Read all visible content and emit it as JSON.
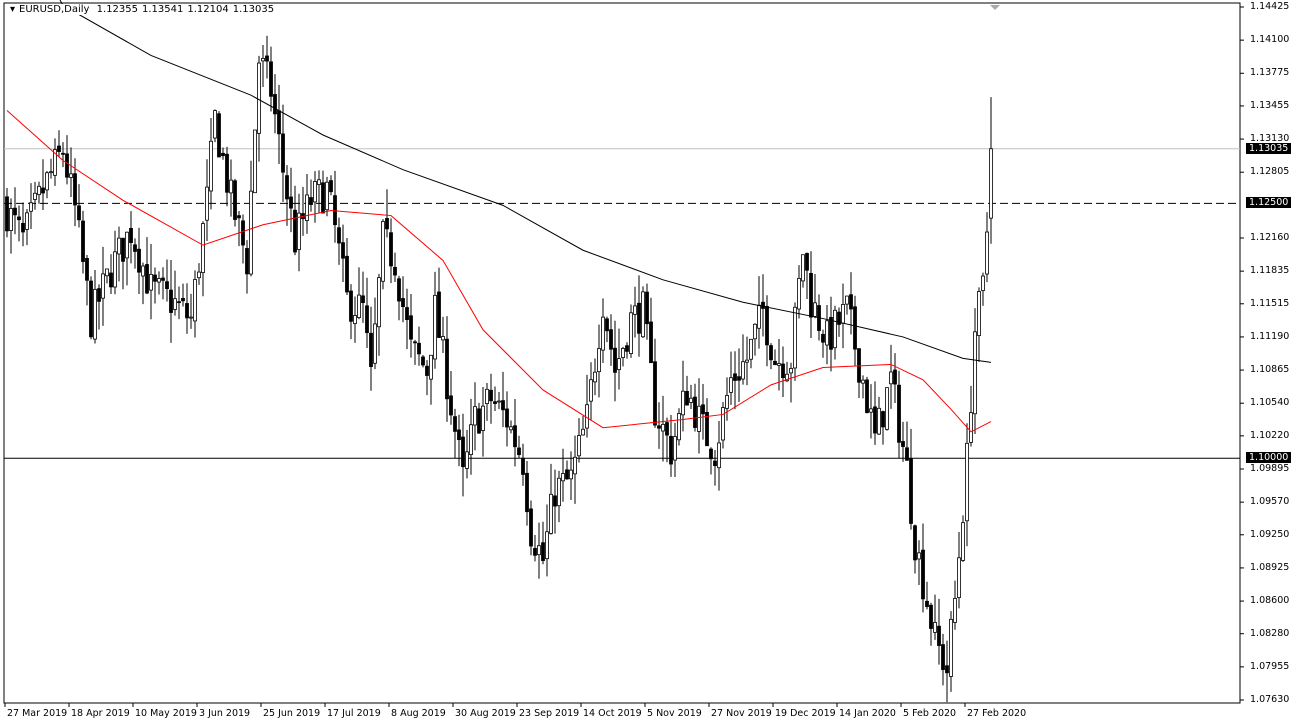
{
  "header": {
    "symbol": "EURUSD,Daily",
    "open": "1.12355",
    "high": "1.13541",
    "low": "1.12104",
    "close": "1.13035"
  },
  "chart_data": {
    "type": "candlestick",
    "symbol": "EURUSD",
    "timeframe": "Daily",
    "ylim": [
      1.0763,
      1.14425
    ],
    "y_ticks": [
      "1.14425",
      "1.14100",
      "1.13775",
      "1.13455",
      "1.13130",
      "1.12805",
      "1.12160",
      "1.11835",
      "1.11515",
      "1.11190",
      "1.10865",
      "1.10540",
      "1.10220",
      "1.09895",
      "1.09570",
      "1.09250",
      "1.08925",
      "1.08600",
      "1.08280",
      "1.07955",
      "1.07630"
    ],
    "x_ticks": [
      "27 Mar 2019",
      "18 Apr 2019",
      "10 May 2019",
      "3 Jun 2019",
      "25 Jun 2019",
      "17 Jul 2019",
      "8 Aug 2019",
      "30 Aug 2019",
      "23 Sep 2019",
      "14 Oct 2019",
      "5 Nov 2019",
      "27 Nov 2019",
      "19 Dec 2019",
      "14 Jan 2020",
      "5 Feb 2020",
      "27 Feb 2020"
    ],
    "approx_close_path": [
      [
        0,
        1.1243
      ],
      [
        4,
        1.1214
      ],
      [
        9,
        1.1263
      ],
      [
        14,
        1.1302
      ],
      [
        17,
        1.1243
      ],
      [
        21,
        1.1136
      ],
      [
        26,
        1.1185
      ],
      [
        31,
        1.1224
      ],
      [
        36,
        1.1165
      ],
      [
        41,
        1.1155
      ],
      [
        46,
        1.1136
      ],
      [
        50,
        1.1253
      ],
      [
        52,
        1.1332
      ],
      [
        56,
        1.1253
      ],
      [
        60,
        1.1194
      ],
      [
        63,
        1.1391
      ],
      [
        66,
        1.1361
      ],
      [
        69,
        1.1283
      ],
      [
        72,
        1.1214
      ],
      [
        76,
        1.1253
      ],
      [
        80,
        1.1263
      ],
      [
        82,
        1.1224
      ],
      [
        85,
        1.1155
      ],
      [
        89,
        1.1145
      ],
      [
        91,
        1.1077
      ],
      [
        94,
        1.1214
      ],
      [
        97,
        1.1194
      ],
      [
        101,
        1.1106
      ],
      [
        105,
        1.1087
      ],
      [
        107,
        1.1145
      ],
      [
        110,
        1.1077
      ],
      [
        114,
        1.0979
      ],
      [
        117,
        1.1038
      ],
      [
        121,
        1.1058
      ],
      [
        125,
        1.1038
      ],
      [
        129,
        1.0998
      ],
      [
        131,
        1.093
      ],
      [
        134,
        1.09
      ],
      [
        137,
        1.0969
      ],
      [
        141,
        1.0979
      ],
      [
        145,
        1.1038
      ],
      [
        149,
        1.1155
      ],
      [
        152,
        1.1087
      ],
      [
        156,
        1.1136
      ],
      [
        159,
        1.1145
      ],
      [
        162,
        1.1048
      ],
      [
        166,
        1.1008
      ],
      [
        170,
        1.1067
      ],
      [
        174,
        1.1028
      ],
      [
        177,
        1.1008
      ],
      [
        181,
        1.1077
      ],
      [
        185,
        1.1097
      ],
      [
        189,
        1.1145
      ],
      [
        192,
        1.1097
      ],
      [
        196,
        1.1097
      ],
      [
        199,
        1.1204
      ],
      [
        201,
        1.1155
      ],
      [
        205,
        1.1116
      ],
      [
        210,
        1.1145
      ],
      [
        214,
        1.1077
      ],
      [
        217,
        1.1018
      ],
      [
        221,
        1.1077
      ],
      [
        225,
        1.0989
      ],
      [
        227,
        1.092
      ],
      [
        230,
        1.0861
      ],
      [
        232,
        1.0822
      ],
      [
        235,
        1.0793
      ],
      [
        237,
        1.0861
      ],
      [
        240,
        1.0998
      ],
      [
        242,
        1.1126
      ],
      [
        244,
        1.1165
      ],
      [
        245,
        1.1224
      ],
      [
        246,
        1.13035
      ]
    ],
    "last_bar": {
      "open": 1.12355,
      "high": 1.13541,
      "low": 1.12104,
      "close": 1.13035
    },
    "ma_red": [
      [
        0,
        1.1341
      ],
      [
        14,
        1.1292
      ],
      [
        29,
        1.1253
      ],
      [
        49,
        1.1209
      ],
      [
        64,
        1.1229
      ],
      [
        81,
        1.1243
      ],
      [
        96,
        1.1238
      ],
      [
        109,
        1.1194
      ],
      [
        119,
        1.1126
      ],
      [
        134,
        1.1067
      ],
      [
        149,
        1.103
      ],
      [
        169,
        1.1038
      ],
      [
        179,
        1.1043
      ],
      [
        191,
        1.1072
      ],
      [
        204,
        1.1089
      ],
      [
        221,
        1.1092
      ],
      [
        229,
        1.1077
      ],
      [
        236,
        1.1048
      ],
      [
        241,
        1.1026
      ],
      [
        246,
        1.1036
      ]
    ],
    "ma_black": [
      [
        14,
        1.1444
      ],
      [
        36,
        1.1395
      ],
      [
        61,
        1.1356
      ],
      [
        79,
        1.1317
      ],
      [
        99,
        1.1283
      ],
      [
        124,
        1.1248
      ],
      [
        144,
        1.1204
      ],
      [
        164,
        1.1175
      ],
      [
        184,
        1.1153
      ],
      [
        204,
        1.1137
      ],
      [
        224,
        1.1119
      ],
      [
        239,
        1.1098
      ],
      [
        246,
        1.1094
      ]
    ],
    "levels": [
      {
        "price": "1.13035",
        "style": "solid",
        "color": "#c0c0c0"
      },
      {
        "price": "1.12500",
        "style": "dashed",
        "color": "#000000"
      },
      {
        "price": "1.10000",
        "style": "solid",
        "color": "#000000"
      }
    ],
    "colors": {
      "bull": "#ffffff",
      "bear": "#000000",
      "ma_fast": "#ff0000",
      "ma_slow": "#000000"
    }
  }
}
